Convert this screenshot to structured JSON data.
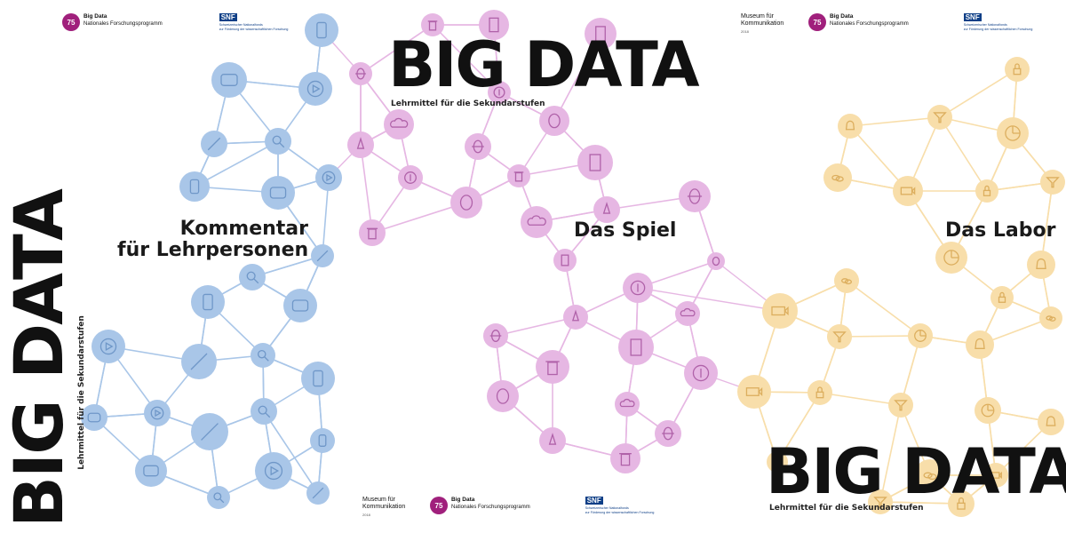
{
  "colors": {
    "blue_node": "#a9c6e8",
    "blue_line": "#a9c6e8",
    "blue_icon": "#6f97c8",
    "pink_node": "#e6b7e3",
    "pink_line": "#e6b7e3",
    "pink_icon": "#b062a9",
    "yellow_node": "#f8deaa",
    "yellow_line": "#f8deaa",
    "yellow_icon": "#dcae5e",
    "text": "#111111",
    "badge": "#a0207c",
    "snf": "#0d3e86"
  },
  "covers": {
    "kommentar": {
      "headline": "BIG DATA",
      "subtitle": "Lehrmittel für die Sekundarstufen",
      "section_line1": "Kommentar",
      "section_line2": "für Lehrpersonen"
    },
    "spiel": {
      "headline": "BIG DATA",
      "subtitle": "Lehrmittel für die Sekundarstufen",
      "section": "Das Spiel"
    },
    "labor": {
      "headline": "BIG DATA",
      "subtitle": "Lehrmittel für die Sekundarstufen",
      "section": "Das Labor"
    }
  },
  "logos": {
    "museum_line1": "Museum für",
    "museum_line2": "Kommunikation",
    "museum_year": "2018",
    "nfp_badge": "75",
    "nfp_title": "Big Data",
    "nfp_sub": "Nationales Forschungsprogramm",
    "snf_mark": "SNF",
    "snf_line1": "Schweizerischer Nationalfonds",
    "snf_line2": "zur Förderung der wissenschaftlichen Forschung"
  },
  "network": {
    "blue_icons": [
      "phone-icon",
      "chat-icon",
      "play-icon",
      "pen-icon",
      "magnifier-icon"
    ],
    "pink_icons": [
      "bug-icon",
      "trash-icon",
      "document-icon",
      "dollar-icon",
      "mask-icon",
      "cloud-icon",
      "rocket-icon"
    ],
    "yellow_icons": [
      "lock-icon",
      "funnel-icon",
      "pie-chart-icon",
      "bell-icon",
      "coins-icon",
      "camera-icon"
    ]
  }
}
